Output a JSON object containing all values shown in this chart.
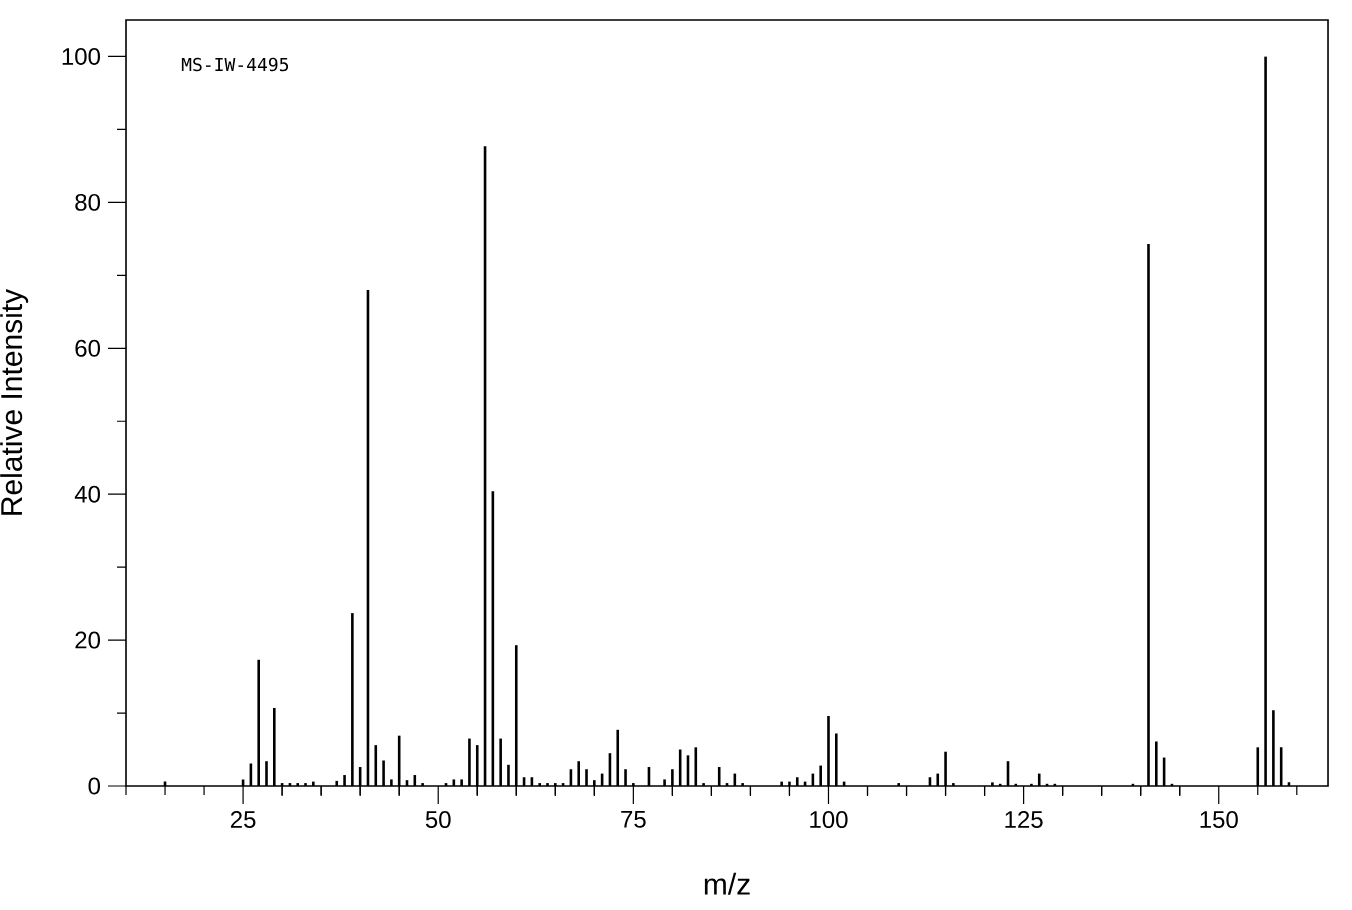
{
  "chart_data": {
    "type": "bar",
    "xlabel": "m/z",
    "ylabel": "Relative Intensity",
    "color": "#000000",
    "annotations": [
      "MS-IW-4495"
    ],
    "x": [
      15,
      25,
      26,
      27,
      28,
      29,
      30,
      31,
      32,
      33,
      34,
      37,
      38,
      39,
      40,
      41,
      42,
      43,
      44,
      45,
      46,
      47,
      48,
      51,
      52,
      53,
      54,
      55,
      56,
      57,
      58,
      59,
      60,
      61,
      62,
      63,
      64,
      65,
      66,
      67,
      68,
      69,
      70,
      71,
      72,
      73,
      74,
      75,
      77,
      79,
      80,
      81,
      82,
      83,
      84,
      86,
      87,
      88,
      89,
      94,
      95,
      96,
      97,
      98,
      99,
      100,
      101,
      102,
      109,
      113,
      114,
      115,
      116,
      121,
      122,
      123,
      124,
      126,
      127,
      128,
      129,
      139,
      141,
      142,
      143,
      144,
      155,
      156,
      157,
      158,
      159
    ],
    "values": [
      0.6,
      0.9,
      3.1,
      17.3,
      3.4,
      10.7,
      0.4,
      0.4,
      0.4,
      0.4,
      0.6,
      0.7,
      1.5,
      23.7,
      2.6,
      68,
      5.6,
      3.5,
      0.9,
      6.9,
      0.8,
      1.5,
      0.4,
      0.4,
      0.9,
      0.9,
      6.5,
      5.6,
      87.7,
      40.4,
      6.5,
      2.9,
      19.3,
      1.2,
      1.2,
      0.4,
      0.4,
      0.4,
      0.4,
      2.3,
      3.4,
      2.3,
      0.8,
      1.7,
      4.5,
      7.7,
      2.3,
      0.4,
      2.6,
      0.9,
      2.3,
      5,
      4.2,
      5.3,
      0.4,
      2.6,
      0.4,
      1.7,
      0.4,
      0.6,
      0.6,
      1.2,
      0.6,
      1.7,
      2.8,
      9.6,
      7.2,
      0.6,
      0.4,
      1.2,
      1.7,
      4.7,
      0.4,
      0.5,
      0.3,
      3.4,
      0.3,
      0.3,
      1.7,
      0.3,
      0.3,
      0.3,
      74.3,
      6.1,
      3.9,
      0.3,
      5.3,
      100,
      10.4,
      5.3,
      0.5
    ],
    "xlim": [
      10,
      164
    ],
    "ylim": [
      0,
      105
    ],
    "xticks": [
      {
        "value": 10,
        "label": null
      },
      {
        "value": 15,
        "label": null
      },
      {
        "value": 20,
        "label": null
      },
      25,
      {
        "value": 30,
        "label": null
      },
      {
        "value": 35,
        "label": null
      },
      {
        "value": 40,
        "label": null
      },
      {
        "value": 45,
        "label": null
      },
      50,
      {
        "value": 55,
        "label": null
      },
      {
        "value": 60,
        "label": null
      },
      {
        "value": 65,
        "label": null
      },
      {
        "value": 70,
        "label": null
      },
      75,
      {
        "value": 80,
        "label": null
      },
      {
        "value": 85,
        "label": null
      },
      {
        "value": 90,
        "label": null
      },
      {
        "value": 95,
        "label": null
      },
      100,
      {
        "value": 105,
        "label": null
      },
      {
        "value": 110,
        "label": null
      },
      {
        "value": 115,
        "label": null
      },
      {
        "value": 120,
        "label": null
      },
      125,
      {
        "value": 130,
        "label": null
      },
      {
        "value": 135,
        "label": null
      },
      {
        "value": 140,
        "label": null
      },
      {
        "value": 145,
        "label": null
      },
      150,
      {
        "value": 155,
        "label": null
      },
      {
        "value": 160,
        "label": null
      }
    ],
    "yticks": [
      0,
      {
        "value": 10,
        "label": null
      },
      20,
      {
        "value": 30,
        "label": null
      },
      40,
      {
        "value": 50,
        "label": null
      },
      60,
      {
        "value": 70,
        "label": null
      },
      80,
      {
        "value": 90,
        "label": null
      },
      100
    ],
    "grid": false
  }
}
